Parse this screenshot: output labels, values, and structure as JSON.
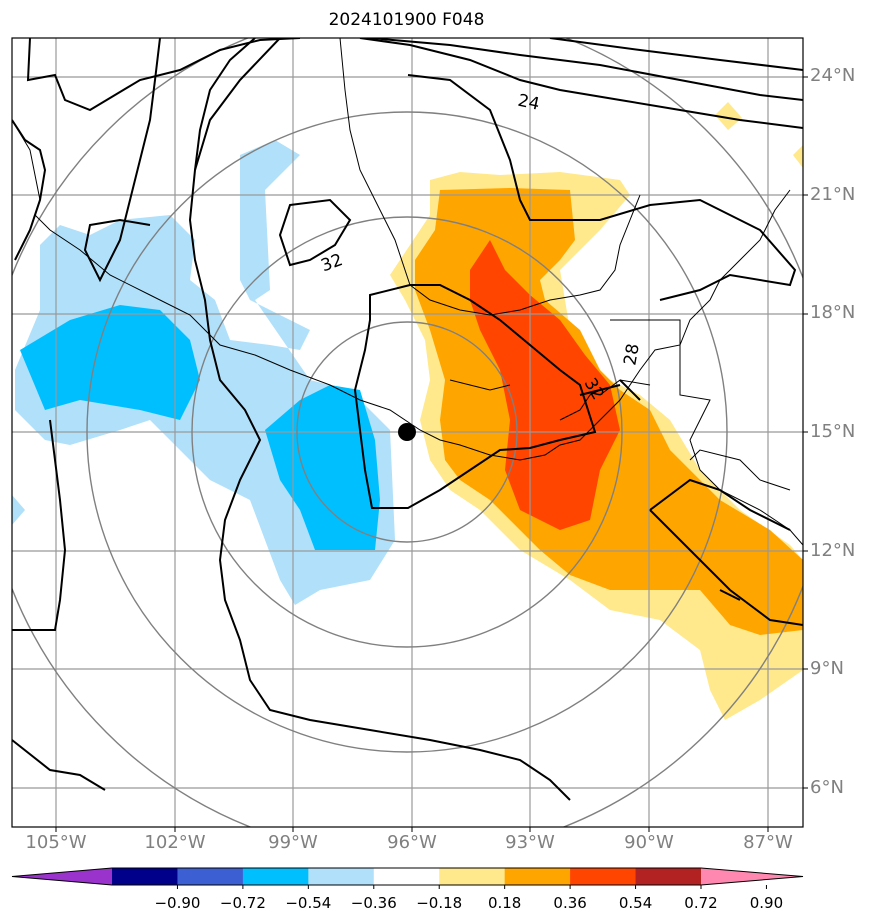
{
  "title": "2024101900 F048",
  "lat_labels": [
    "24°N",
    "21°N",
    "18°N",
    "15°N",
    "12°N",
    "9°N",
    "6°N"
  ],
  "lon_labels": [
    "105°W",
    "102°W",
    "99°W",
    "96°W",
    "93°W",
    "90°W",
    "87°W"
  ],
  "contour_labels": [
    "24",
    "28",
    "32",
    "32"
  ],
  "colorbar": {
    "labels": [
      "−0.90",
      "−0.72",
      "−0.54",
      "−0.36",
      "−0.18",
      "0.18",
      "0.36",
      "0.54",
      "0.72",
      "0.90"
    ],
    "colors": [
      "#9933cc",
      "#00008b",
      "#3d5fd4",
      "#00bfff",
      "#b0e0fa",
      "#ffffff",
      "#ffe98c",
      "#ffa500",
      "#ff4500",
      "#b22222",
      "#ff88b0"
    ]
  },
  "center_marker": {
    "lat": 15,
    "lon": -96
  }
}
